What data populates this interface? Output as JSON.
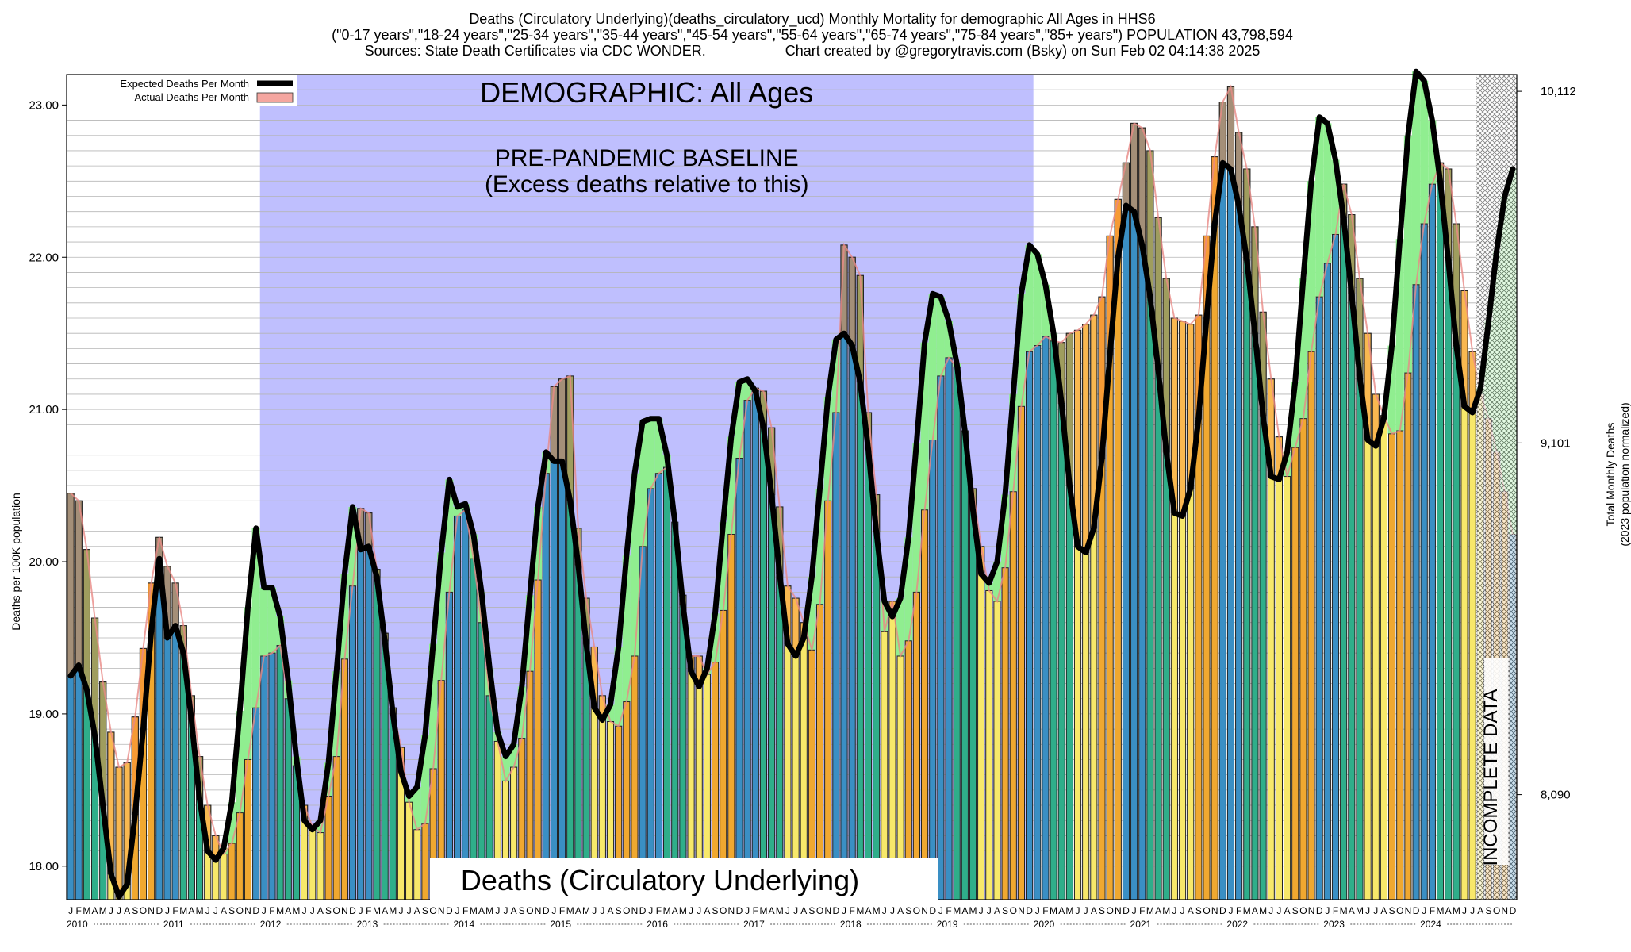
{
  "header": {
    "line1": "Deaths (Circulatory Underlying)(deaths_circulatory_ucd) Monthly Mortality for demographic All Ages in HHS6",
    "line2": "(\"0-17 years\",\"18-24 years\",\"25-34 years\",\"35-44 years\",\"45-54 years\",\"55-64 years\",\"65-74 years\",\"75-84 years\",\"85+ years\") POPULATION 43,798,594",
    "line3_left": "Sources: State Death Certificates via CDC WONDER.",
    "line3_right": "Chart created by @gregorytravis.com (Bsky) on Sun Feb 02 04:14:38 2025"
  },
  "colors": {
    "baseline_shade": "#bfbffe",
    "expected_line": "#000000",
    "actual_fill": "#f4a6a0",
    "excess_over_fill": "#fb8f3a",
    "deficit_fill": "#90ee90",
    "winter_bar": "#3a8fc4",
    "summer_bar": "#f7e86a",
    "autumn_bar": "#f0a830",
    "spring_bar": "#2fae8a"
  },
  "chart_data": {
    "type": "bar",
    "title": "Deaths (Circulatory Underlying)",
    "ylabel_left": "Deaths per 100K population",
    "ylabel_right_line1": "Total Monthly Deaths",
    "ylabel_right_line2": "(2023 population normalized)",
    "ylim": [
      17.78,
      23.2
    ],
    "left_ticks": [
      "18.00",
      "19.00",
      "20.00",
      "21.00",
      "22.00",
      "23.00"
    ],
    "right_ticks": [
      {
        "label": "8,090",
        "y": 18.47
      },
      {
        "label": "9,101",
        "y": 20.78
      },
      {
        "label": "10,112",
        "y": 23.09
      }
    ],
    "legend": {
      "position": "top-left",
      "items": [
        "Expected Deaths Per Month",
        "Actual Deaths Per Month"
      ]
    },
    "annotations": {
      "demographic": "DEMOGRAPHIC: All Ages",
      "baseline_line1": "PRE-PANDEMIC BASELINE",
      "baseline_line2": "(Excess deaths relative to this)",
      "incomplete": "INCOMPLETE DATA"
    },
    "baseline_period": {
      "start": "2012-01",
      "end": "2019-12"
    },
    "incomplete_period": {
      "start": "2024-08",
      "end": "2024-12"
    },
    "start_month": "2010-01",
    "month_letters": [
      "J",
      "F",
      "M",
      "A",
      "M",
      "J",
      "J",
      "A",
      "S",
      "O",
      "N",
      "D"
    ],
    "years": [
      "2010",
      "2011",
      "2012",
      "2013",
      "2014",
      "2015",
      "2016",
      "2017",
      "2018",
      "2019",
      "2020",
      "2021",
      "2022",
      "2023",
      "2024"
    ],
    "actual": [
      20.45,
      20.4,
      20.08,
      19.63,
      19.21,
      18.88,
      18.65,
      18.68,
      18.98,
      19.43,
      19.86,
      20.16,
      19.97,
      19.86,
      19.58,
      19.12,
      18.72,
      18.4,
      18.2,
      18.08,
      18.15,
      18.35,
      18.7,
      19.04,
      19.38,
      19.4,
      19.45,
      19.1,
      18.66,
      18.4,
      18.26,
      18.22,
      18.46,
      18.72,
      19.36,
      19.84,
      20.35,
      20.32,
      19.95,
      19.53,
      19.04,
      18.78,
      18.42,
      18.24,
      18.28,
      18.64,
      19.22,
      19.8,
      20.3,
      20.34,
      20.02,
      19.6,
      19.12,
      18.82,
      18.56,
      18.65,
      18.84,
      19.28,
      19.88,
      20.58,
      21.15,
      21.2,
      21.22,
      20.22,
      19.76,
      19.44,
      19.12,
      18.95,
      18.92,
      19.08,
      19.38,
      20.1,
      20.48,
      20.58,
      20.62,
      20.26,
      19.78,
      19.38,
      19.38,
      19.26,
      19.34,
      19.68,
      20.18,
      20.68,
      21.06,
      21.14,
      21.12,
      20.88,
      20.36,
      19.84,
      19.76,
      19.6,
      19.42,
      19.72,
      20.4,
      20.98,
      22.08,
      22.0,
      21.88,
      20.98,
      20.44,
      19.54,
      19.74,
      19.38,
      19.48,
      19.8,
      20.34,
      20.8,
      21.22,
      21.34,
      21.28,
      20.86,
      20.48,
      20.1,
      19.81,
      19.74,
      19.96,
      20.46,
      21.02,
      21.38,
      21.42,
      21.48,
      21.45,
      21.44,
      21.5,
      21.52,
      21.56,
      21.62,
      21.74,
      22.14,
      22.38,
      22.62,
      22.88,
      22.85,
      22.7,
      22.26,
      21.86,
      21.6,
      21.58,
      21.56,
      21.62,
      22.14,
      22.66,
      23.02,
      23.12,
      22.82,
      22.58,
      22.2,
      21.64,
      21.2,
      20.82,
      20.56,
      20.75,
      20.94,
      21.38,
      21.74,
      21.96,
      22.15,
      22.48,
      22.28,
      21.86,
      21.5,
      21.1,
      20.96,
      20.84,
      20.86,
      21.24,
      21.82,
      22.22,
      22.48,
      22.62,
      22.58,
      22.22,
      21.78,
      21.38,
      21.1,
      20.94,
      20.72,
      20.46,
      20.18
    ],
    "expected": [
      19.25,
      19.32,
      19.16,
      18.86,
      18.4,
      17.95,
      17.8,
      17.88,
      18.34,
      18.9,
      19.54,
      20.02,
      19.5,
      19.58,
      19.4,
      18.96,
      18.44,
      18.1,
      18.04,
      18.12,
      18.42,
      19.02,
      19.7,
      20.22,
      19.83,
      19.83,
      19.64,
      19.22,
      18.72,
      18.3,
      18.24,
      18.3,
      18.68,
      19.28,
      19.92,
      20.36,
      20.08,
      20.1,
      19.9,
      19.48,
      19.0,
      18.62,
      18.46,
      18.52,
      18.86,
      19.46,
      20.06,
      20.54,
      20.36,
      20.38,
      20.18,
      19.8,
      19.3,
      18.88,
      18.72,
      18.8,
      19.18,
      19.78,
      20.36,
      20.72,
      20.66,
      20.66,
      20.4,
      19.98,
      19.46,
      19.04,
      18.96,
      19.06,
      19.44,
      20.04,
      20.58,
      20.92,
      20.94,
      20.94,
      20.7,
      20.26,
      19.72,
      19.28,
      19.18,
      19.3,
      19.66,
      20.26,
      20.82,
      21.18,
      21.2,
      21.12,
      20.88,
      20.44,
      19.92,
      19.46,
      19.38,
      19.5,
      19.9,
      20.48,
      21.08,
      21.46,
      21.5,
      21.42,
      21.18,
      20.74,
      20.2,
      19.74,
      19.64,
      19.76,
      20.16,
      20.78,
      21.44,
      21.76,
      21.74,
      21.58,
      21.3,
      20.86,
      20.34,
      19.92,
      19.86,
      20.0,
      20.44,
      21.1,
      21.76,
      22.08,
      22.02,
      21.82,
      21.5,
      21.04,
      20.5,
      20.1,
      20.06,
      20.22,
      20.68,
      21.36,
      22.0,
      22.34,
      22.3,
      22.08,
      21.74,
      21.26,
      20.72,
      20.32,
      20.3,
      20.48,
      20.94,
      21.6,
      22.22,
      22.62,
      22.58,
      22.34,
      21.98,
      21.5,
      20.96,
      20.56,
      20.54,
      20.72,
      21.18,
      21.86,
      22.5,
      22.92,
      22.88,
      22.64,
      22.26,
      21.76,
      21.22,
      20.8,
      20.76,
      20.94,
      21.42,
      22.12,
      22.8,
      23.22,
      23.16,
      22.9,
      22.5,
      21.98,
      21.42,
      21.02,
      20.98,
      21.14,
      21.58,
      22.04,
      22.4,
      22.58
    ]
  }
}
